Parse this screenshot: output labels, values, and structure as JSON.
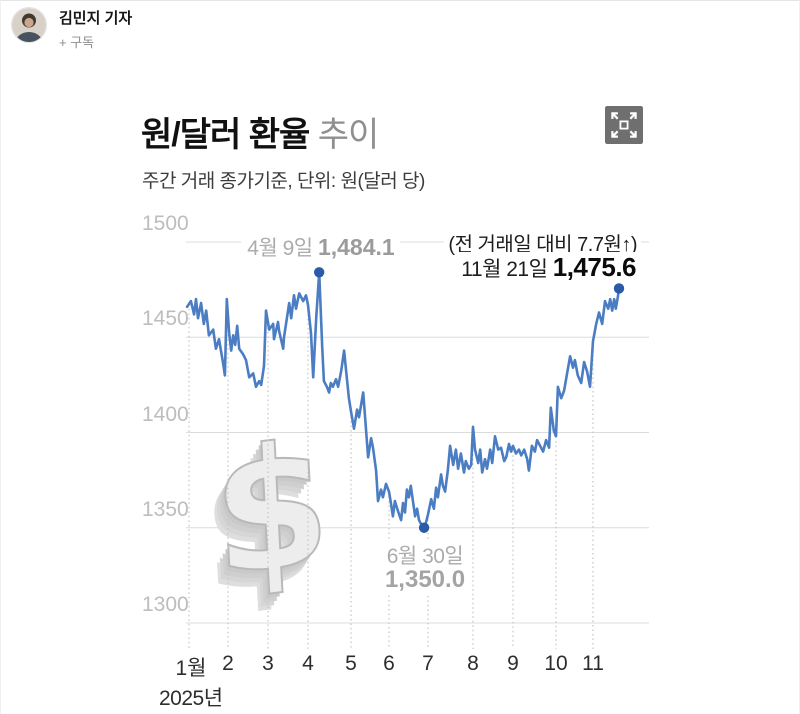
{
  "reporter": {
    "name": "김민지 기자",
    "subscribe": "+ 구독"
  },
  "expand_button": {
    "icon": "fullscreen-expand"
  },
  "chart_header": {
    "title_bold": "원/달러 환율",
    "title_light": " 추이",
    "subtitle": "주간 거래 종가기준, 단위: 원(달러 당)"
  },
  "annotations": {
    "peak": {
      "date": "4월 9일 ",
      "value": "1,484.1"
    },
    "latest_note": "(전 거래일 대비 7.7원↑)",
    "latest": {
      "date": "11월 21일 ",
      "value": "1,475.6"
    },
    "low": {
      "date": "6월 30일",
      "value": "1,350.0"
    }
  },
  "watermark": {
    "symbol": "$"
  },
  "chart_data": {
    "type": "line",
    "title": "원/달러 환율 추이",
    "subtitle": "주간 거래 종가기준, 단위: 원(달러 당)",
    "ylabel": "원(달러 당)",
    "ylim": [
      1300,
      1500
    ],
    "yticks": [
      1500,
      1450,
      1400,
      1350,
      1300
    ],
    "xticks": [
      "1월",
      "2",
      "3",
      "4",
      "5",
      "6",
      "7",
      "8",
      "9",
      "10",
      "11"
    ],
    "year_label": "2025년",
    "grid": true,
    "legend": false,
    "line_color": "#4b7dc3",
    "dot_color": "#2a5ba6",
    "grid_color": "#dcdcdc",
    "dropline_color": "#c4c4c4",
    "points": [
      [
        0.95,
        1466
      ],
      [
        1.05,
        1469
      ],
      [
        1.13,
        1462
      ],
      [
        1.18,
        1470
      ],
      [
        1.23,
        1460
      ],
      [
        1.31,
        1468
      ],
      [
        1.38,
        1457
      ],
      [
        1.44,
        1464
      ],
      [
        1.51,
        1451
      ],
      [
        1.62,
        1454
      ],
      [
        1.69,
        1444
      ],
      [
        1.77,
        1449
      ],
      [
        1.87,
        1437
      ],
      [
        1.92,
        1430
      ],
      [
        1.97,
        1470
      ],
      [
        2.03,
        1452
      ],
      [
        2.08,
        1443
      ],
      [
        2.13,
        1451
      ],
      [
        2.18,
        1446
      ],
      [
        2.23,
        1456
      ],
      [
        2.28,
        1444
      ],
      [
        2.38,
        1441
      ],
      [
        2.45,
        1438
      ],
      [
        2.53,
        1429
      ],
      [
        2.63,
        1431
      ],
      [
        2.7,
        1424
      ],
      [
        2.78,
        1427
      ],
      [
        2.83,
        1425
      ],
      [
        2.9,
        1435
      ],
      [
        2.95,
        1464
      ],
      [
        3.03,
        1454
      ],
      [
        3.13,
        1457
      ],
      [
        3.15,
        1449
      ],
      [
        3.25,
        1458
      ],
      [
        3.28,
        1453
      ],
      [
        3.38,
        1444
      ],
      [
        3.4,
        1450
      ],
      [
        3.53,
        1468
      ],
      [
        3.58,
        1460
      ],
      [
        3.65,
        1472
      ],
      [
        3.7,
        1465
      ],
      [
        3.78,
        1473
      ],
      [
        3.88,
        1469
      ],
      [
        3.95,
        1472
      ],
      [
        4.0,
        1467
      ],
      [
        4.07,
        1452
      ],
      [
        4.12,
        1429
      ],
      [
        4.19,
        1460
      ],
      [
        4.26,
        1484.1
      ],
      [
        4.33,
        1445
      ],
      [
        4.37,
        1427
      ],
      [
        4.44,
        1424
      ],
      [
        4.49,
        1421
      ],
      [
        4.53,
        1426
      ],
      [
        4.58,
        1424
      ],
      [
        4.65,
        1428
      ],
      [
        4.7,
        1424
      ],
      [
        4.77,
        1432
      ],
      [
        4.84,
        1443
      ],
      [
        4.88,
        1434
      ],
      [
        4.95,
        1418
      ],
      [
        5.0,
        1411
      ],
      [
        5.08,
        1402
      ],
      [
        5.16,
        1412
      ],
      [
        5.21,
        1408
      ],
      [
        5.32,
        1421
      ],
      [
        5.37,
        1408
      ],
      [
        5.45,
        1387
      ],
      [
        5.53,
        1397
      ],
      [
        5.58,
        1392
      ],
      [
        5.66,
        1380
      ],
      [
        5.71,
        1364
      ],
      [
        5.79,
        1370
      ],
      [
        5.84,
        1366
      ],
      [
        5.92,
        1373
      ],
      [
        6.0,
        1369
      ],
      [
        6.05,
        1363
      ],
      [
        6.1,
        1356
      ],
      [
        6.15,
        1364
      ],
      [
        6.21,
        1360
      ],
      [
        6.26,
        1357
      ],
      [
        6.31,
        1354
      ],
      [
        6.36,
        1363
      ],
      [
        6.41,
        1358
      ],
      [
        6.46,
        1370
      ],
      [
        6.51,
        1366
      ],
      [
        6.56,
        1372
      ],
      [
        6.62,
        1363
      ],
      [
        6.67,
        1356
      ],
      [
        6.72,
        1360
      ],
      [
        6.77,
        1354
      ],
      [
        6.82,
        1352
      ],
      [
        6.9,
        1350
      ],
      [
        6.95,
        1353
      ],
      [
        7.0,
        1357
      ],
      [
        7.07,
        1365
      ],
      [
        7.13,
        1360
      ],
      [
        7.18,
        1371
      ],
      [
        7.22,
        1366
      ],
      [
        7.29,
        1378
      ],
      [
        7.33,
        1372
      ],
      [
        7.38,
        1369
      ],
      [
        7.44,
        1380
      ],
      [
        7.49,
        1393
      ],
      [
        7.56,
        1383
      ],
      [
        7.62,
        1391
      ],
      [
        7.67,
        1381
      ],
      [
        7.73,
        1389
      ],
      [
        7.8,
        1379
      ],
      [
        7.84,
        1385
      ],
      [
        7.91,
        1381
      ],
      [
        7.96,
        1383
      ],
      [
        8.0,
        1403
      ],
      [
        8.05,
        1391
      ],
      [
        8.13,
        1384
      ],
      [
        8.18,
        1391
      ],
      [
        8.23,
        1379
      ],
      [
        8.3,
        1386
      ],
      [
        8.35,
        1381
      ],
      [
        8.43,
        1391
      ],
      [
        8.48,
        1384
      ],
      [
        8.55,
        1398
      ],
      [
        8.63,
        1391
      ],
      [
        8.7,
        1392
      ],
      [
        8.78,
        1385
      ],
      [
        8.83,
        1387
      ],
      [
        8.9,
        1394
      ],
      [
        8.95,
        1390
      ],
      [
        9.0,
        1393
      ],
      [
        9.07,
        1389
      ],
      [
        9.14,
        1391
      ],
      [
        9.19,
        1388
      ],
      [
        9.26,
        1391
      ],
      [
        9.33,
        1386
      ],
      [
        9.37,
        1380
      ],
      [
        9.44,
        1393
      ],
      [
        9.51,
        1390
      ],
      [
        9.56,
        1396
      ],
      [
        9.63,
        1393
      ],
      [
        9.7,
        1390
      ],
      [
        9.77,
        1396
      ],
      [
        9.84,
        1392
      ],
      [
        9.88,
        1413
      ],
      [
        9.95,
        1401
      ],
      [
        10.0,
        1398
      ],
      [
        10.05,
        1424
      ],
      [
        10.14,
        1418
      ],
      [
        10.22,
        1422
      ],
      [
        10.3,
        1431
      ],
      [
        10.38,
        1440
      ],
      [
        10.46,
        1434
      ],
      [
        10.51,
        1438
      ],
      [
        10.59,
        1430
      ],
      [
        10.68,
        1426
      ],
      [
        10.76,
        1437
      ],
      [
        10.84,
        1432
      ],
      [
        10.92,
        1424
      ],
      [
        11.0,
        1448
      ],
      [
        11.08,
        1457
      ],
      [
        11.15,
        1463
      ],
      [
        11.23,
        1457
      ],
      [
        11.3,
        1469
      ],
      [
        11.38,
        1465
      ],
      [
        11.43,
        1470
      ],
      [
        11.48,
        1464
      ],
      [
        11.53,
        1470
      ],
      [
        11.57,
        1465
      ],
      [
        11.62,
        1471
      ],
      [
        11.65,
        1475.6
      ]
    ],
    "key_points": [
      {
        "m": 4.26,
        "v": 1484.1,
        "label": "4월 9일 1,484.1"
      },
      {
        "m": 6.9,
        "v": 1350.0,
        "label": "6월 30일 1,350.0"
      },
      {
        "m": 11.65,
        "v": 1475.6,
        "label": "11월 21일 1,475.6 (전 거래일 대비 7.7원↑)"
      }
    ]
  }
}
